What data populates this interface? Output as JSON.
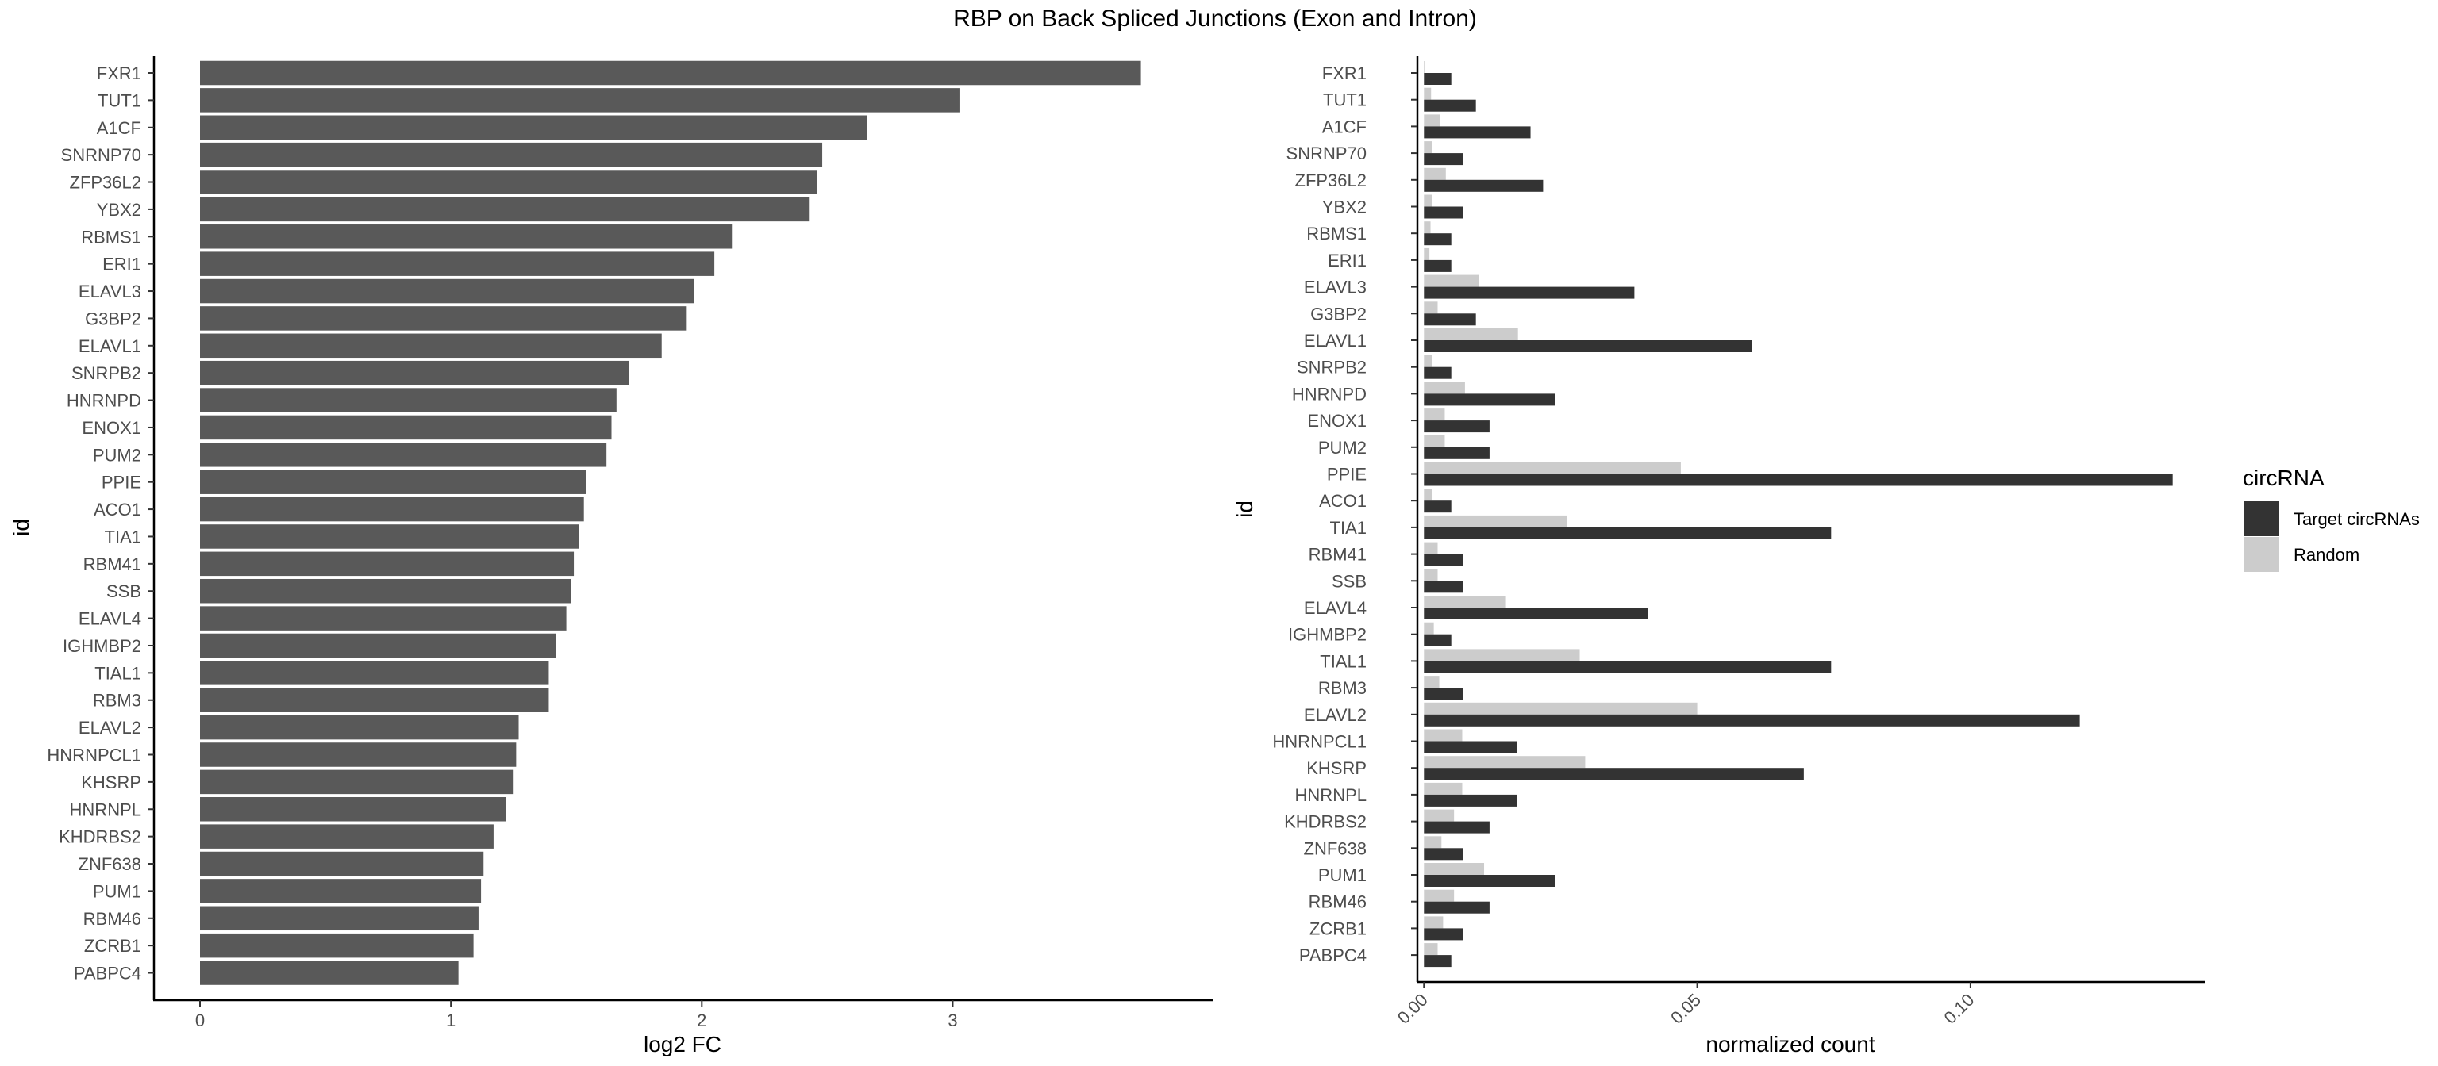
{
  "figure": {
    "title": "RBP on Back Spliced Junctions (Exon and Intron)"
  },
  "chart_data": [
    {
      "type": "bar",
      "orientation": "horizontal",
      "xlabel": "log2 FC",
      "ylabel": "id",
      "xlim": [
        0,
        3.9
      ],
      "xticks": [
        "0",
        "1",
        "2",
        "3"
      ],
      "grid": false,
      "bar_color": "#595959",
      "categories": [
        "FXR1",
        "TUT1",
        "A1CF",
        "SNRNP70",
        "ZFP36L2",
        "YBX2",
        "RBMS1",
        "ERI1",
        "ELAVL3",
        "G3BP2",
        "ELAVL1",
        "SNRPB2",
        "HNRNPD",
        "ENOX1",
        "PUM2",
        "PPIE",
        "ACO1",
        "TIA1",
        "RBM41",
        "SSB",
        "ELAVL4",
        "IGHMBP2",
        "TIAL1",
        "RBM3",
        "ELAVL2",
        "HNRNPCL1",
        "KHSRP",
        "HNRNPL",
        "KHDRBS2",
        "ZNF638",
        "PUM1",
        "RBM46",
        "ZCRB1",
        "PABPC4"
      ],
      "values": [
        3.75,
        3.03,
        2.66,
        2.48,
        2.46,
        2.43,
        2.12,
        2.05,
        1.97,
        1.94,
        1.84,
        1.71,
        1.66,
        1.64,
        1.62,
        1.54,
        1.53,
        1.51,
        1.49,
        1.48,
        1.46,
        1.42,
        1.39,
        1.39,
        1.27,
        1.26,
        1.25,
        1.22,
        1.17,
        1.13,
        1.12,
        1.11,
        1.09,
        1.03
      ]
    },
    {
      "type": "bar",
      "orientation": "horizontal",
      "xlabel": "normalized count",
      "ylabel": "id",
      "xlim": [
        -0.0012,
        0.143
      ],
      "xticks": [
        "0.00",
        "0.05",
        "0.10"
      ],
      "grid": false,
      "legend": {
        "title": "circRNA",
        "placement": "right"
      },
      "categories": [
        "FXR1",
        "TUT1",
        "A1CF",
        "SNRNP70",
        "ZFP36L2",
        "YBX2",
        "RBMS1",
        "ERI1",
        "ELAVL3",
        "G3BP2",
        "ELAVL1",
        "SNRPB2",
        "HNRNPD",
        "ENOX1",
        "PUM2",
        "PPIE",
        "ACO1",
        "TIA1",
        "RBM41",
        "SSB",
        "ELAVL4",
        "IGHMBP2",
        "TIAL1",
        "RBM3",
        "ELAVL2",
        "HNRNPCL1",
        "KHSRP",
        "HNRNPL",
        "KHDRBS2",
        "ZNF638",
        "PUM1",
        "RBM46",
        "ZCRB1",
        "PABPC4"
      ],
      "series": [
        {
          "name": "Target circRNAs",
          "color": "#333333",
          "values": [
            0.005,
            0.0095,
            0.0195,
            0.0072,
            0.0218,
            0.0072,
            0.005,
            0.005,
            0.0385,
            0.0095,
            0.06,
            0.005,
            0.024,
            0.012,
            0.012,
            0.137,
            0.005,
            0.0745,
            0.0072,
            0.0072,
            0.041,
            0.005,
            0.0745,
            0.0072,
            0.12,
            0.017,
            0.0695,
            0.017,
            0.012,
            0.0072,
            0.024,
            0.012,
            0.0072,
            0.005
          ]
        },
        {
          "name": "Random",
          "color": "#cccccc",
          "values": [
            0.0002,
            0.0013,
            0.003,
            0.0015,
            0.004,
            0.0015,
            0.0012,
            0.001,
            0.01,
            0.0025,
            0.0172,
            0.0015,
            0.0075,
            0.0038,
            0.0038,
            0.047,
            0.0015,
            0.0262,
            0.0025,
            0.0025,
            0.015,
            0.0018,
            0.0285,
            0.0028,
            0.05,
            0.007,
            0.0295,
            0.007,
            0.0055,
            0.0032,
            0.011,
            0.0055,
            0.0035,
            0.0025
          ]
        }
      ]
    }
  ]
}
